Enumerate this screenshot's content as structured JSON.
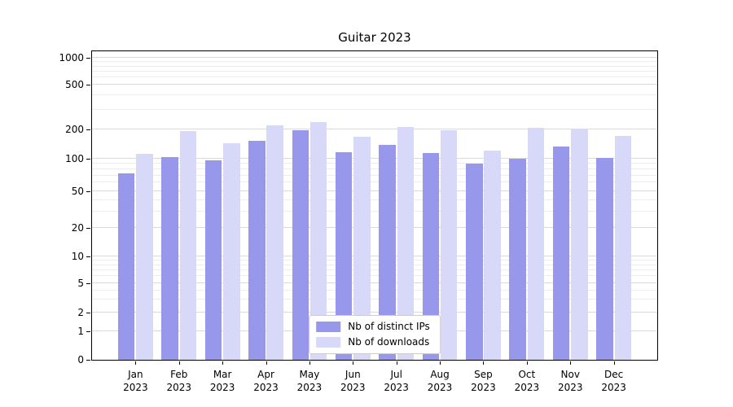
{
  "chart_data": {
    "type": "bar",
    "title": "Guitar 2023",
    "xlabel": "",
    "ylabel": "",
    "categories": [
      "Jan 2023",
      "Feb 2023",
      "Mar 2023",
      "Apr 2023",
      "May 2023",
      "Jun 2023",
      "Jul 2023",
      "Aug 2023",
      "Sep 2023",
      "Oct 2023",
      "Nov 2023",
      "Dec 2023"
    ],
    "series": [
      {
        "name": "Nb of distinct IPs",
        "color": "#9797ec",
        "values": [
          73,
          104,
          97,
          152,
          196,
          117,
          139,
          115,
          90,
          100,
          133,
          102
        ]
      },
      {
        "name": "Nb of downloads",
        "color": "#d8d8f8",
        "values": [
          113,
          191,
          144,
          218,
          231,
          168,
          211,
          196,
          122,
          206,
          202,
          172
        ]
      }
    ],
    "yscale": "symlog",
    "y_ticks": [
      0,
      1,
      2,
      5,
      10,
      20,
      50,
      100,
      200,
      500,
      1000
    ],
    "ylim": [
      0,
      1100
    ],
    "grid": true,
    "legend_position": "lower center"
  },
  "colors": {
    "background": "#ffffff",
    "axis": "#000000",
    "grid_major": "#d9d9d9",
    "grid_minor": "#ededed",
    "legend_border": "#cccccc"
  }
}
